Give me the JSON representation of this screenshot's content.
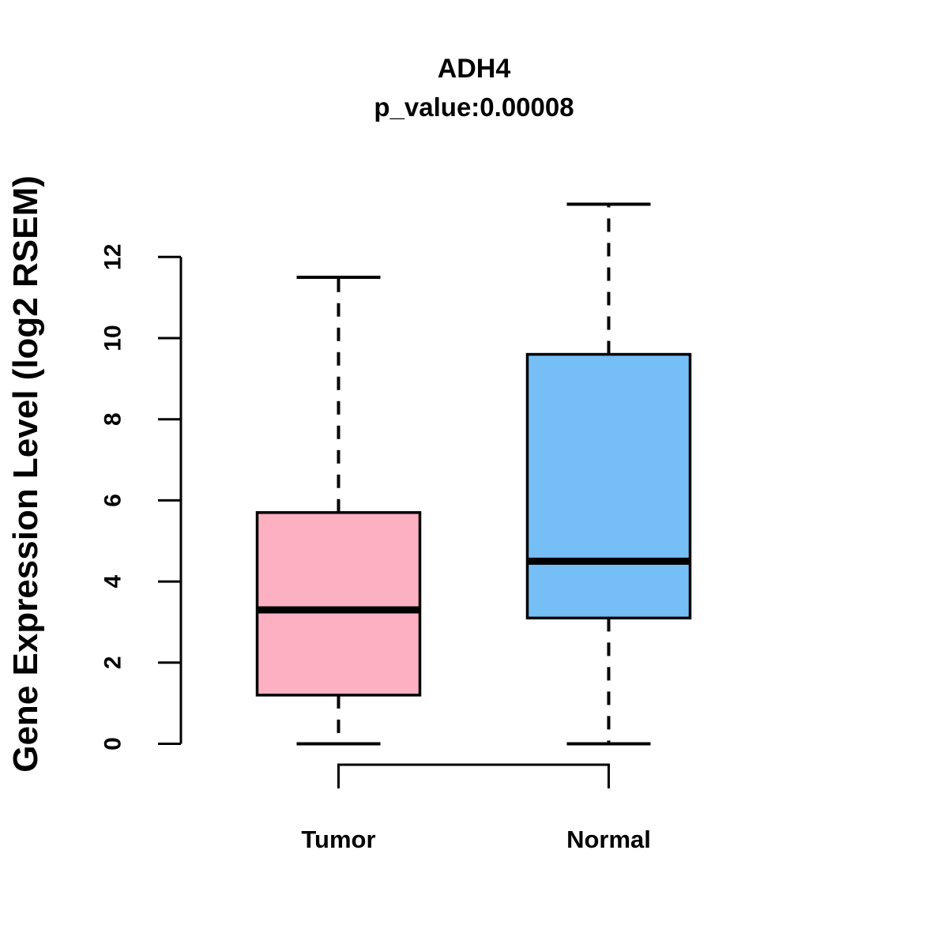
{
  "title": "ADH4",
  "subtitle": "p_value:0.00008",
  "y_axis": {
    "label": "Gene Expression Level (log2 RSEM)",
    "ticks": [
      "0",
      "2",
      "4",
      "6",
      "8",
      "10",
      "12"
    ]
  },
  "x_axis": {
    "categories": [
      "Tumor",
      "Normal"
    ]
  },
  "colors": {
    "tumor_fill": "#FCB0C2",
    "normal_fill": "#76BFF6",
    "line": "#000000",
    "background": "#FFFFFF"
  },
  "chart_data": {
    "type": "boxplot",
    "title": "ADH4",
    "subtitle": "p_value:0.00008",
    "ylabel": "Gene Expression Level (log2 RSEM)",
    "xlabel": "",
    "categories": [
      "Tumor",
      "Normal"
    ],
    "yticks": [
      0,
      2,
      4,
      6,
      8,
      10,
      12
    ],
    "ylim": [
      0,
      13.5
    ],
    "grid": false,
    "legend": "none",
    "series": [
      {
        "name": "Tumor",
        "whisker_low": 0,
        "q1": 1.2,
        "median": 3.3,
        "q3": 5.7,
        "whisker_high": 11.5,
        "fill": "#FCB0C2"
      },
      {
        "name": "Normal",
        "whisker_low": 0,
        "q1": 3.1,
        "median": 4.5,
        "q3": 9.6,
        "whisker_high": 13.3,
        "fill": "#76BFF6"
      }
    ],
    "comparison_bracket": {
      "between": [
        "Tumor",
        "Normal"
      ]
    }
  }
}
